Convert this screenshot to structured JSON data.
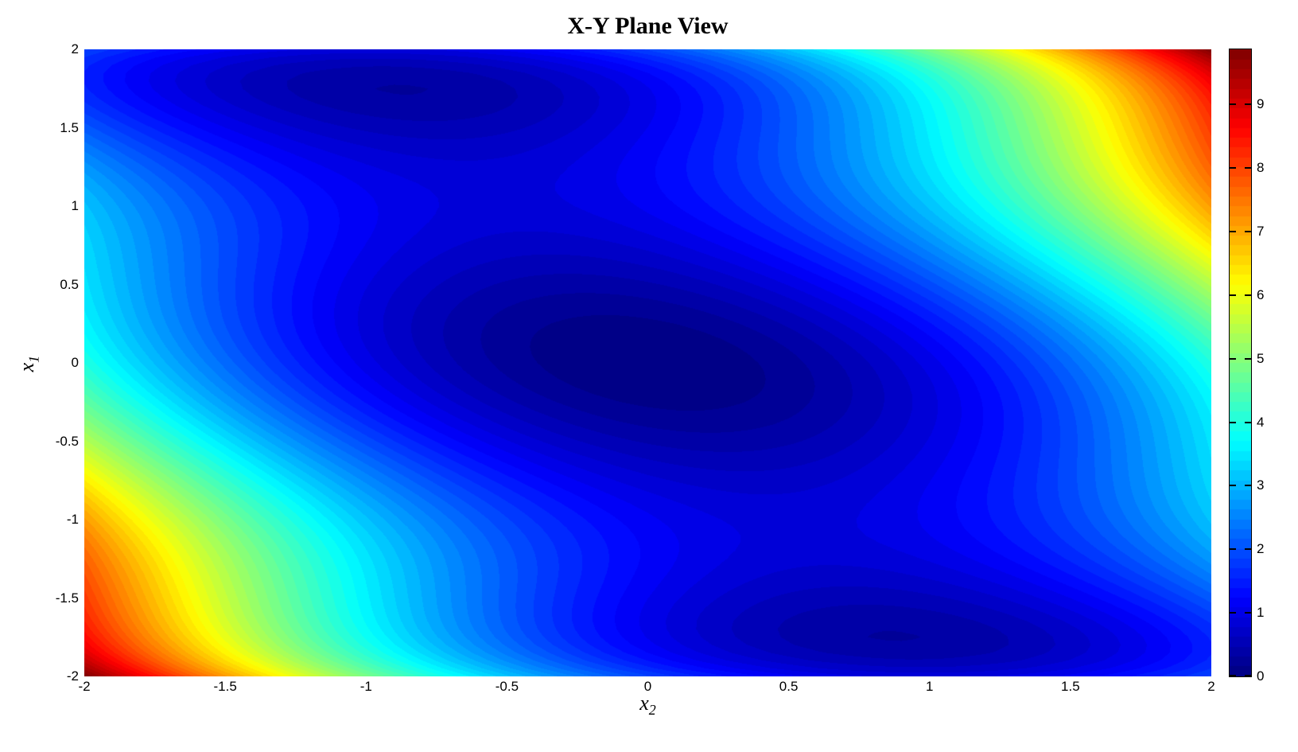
{
  "page": {
    "background": "#ffffff"
  },
  "chart_data": {
    "type": "contour",
    "title": "X-Y Plane View",
    "xlabel": {
      "base": "x",
      "sub": "2"
    },
    "ylabel": {
      "base": "x",
      "sub": "1"
    },
    "x_range": [
      -2,
      2
    ],
    "y_range": [
      -2,
      2
    ],
    "x_tick_values": [
      -2,
      -1.5,
      -1,
      -0.5,
      0,
      0.5,
      1,
      1.5,
      2
    ],
    "x_tick_labels": [
      "-2",
      "-1.5",
      "-1",
      "-0.5",
      "0",
      "0.5",
      "1",
      "1.5",
      "2"
    ],
    "y_tick_values": [
      2,
      1.5,
      1,
      0.5,
      0,
      -0.5,
      -1,
      -1.5,
      -2
    ],
    "y_tick_labels": [
      "2",
      "1.5",
      "1",
      "0.5",
      "0",
      "-0.5",
      "-1",
      "-1.5",
      "-2"
    ],
    "z_expression": "2*x1*x1 - 1.05*Math.pow(x1,4) + Math.pow(x1,6)/6 + x1*x2 + x2*x2",
    "z_min": 0,
    "z_max": 9.8667,
    "grid_step": 0.05,
    "levels": 64,
    "colormap": "jet",
    "grid": false,
    "colorbar": {
      "min": 0,
      "max": 9.8667,
      "tick_values": [
        0,
        1,
        2,
        3,
        4,
        5,
        6,
        7,
        8,
        9
      ],
      "tick_labels": [
        "0",
        "1",
        "2",
        "3",
        "4",
        "5",
        "6",
        "7",
        "8",
        "9"
      ]
    },
    "features": {
      "global_minimum_xy": [
        0,
        0
      ],
      "local_minima_xy": [
        [
          -0.87,
          1.75
        ],
        [
          0.87,
          -1.75
        ]
      ],
      "maxima_corners_xy": [
        [
          2,
          2
        ],
        [
          -2,
          -2
        ]
      ]
    }
  }
}
